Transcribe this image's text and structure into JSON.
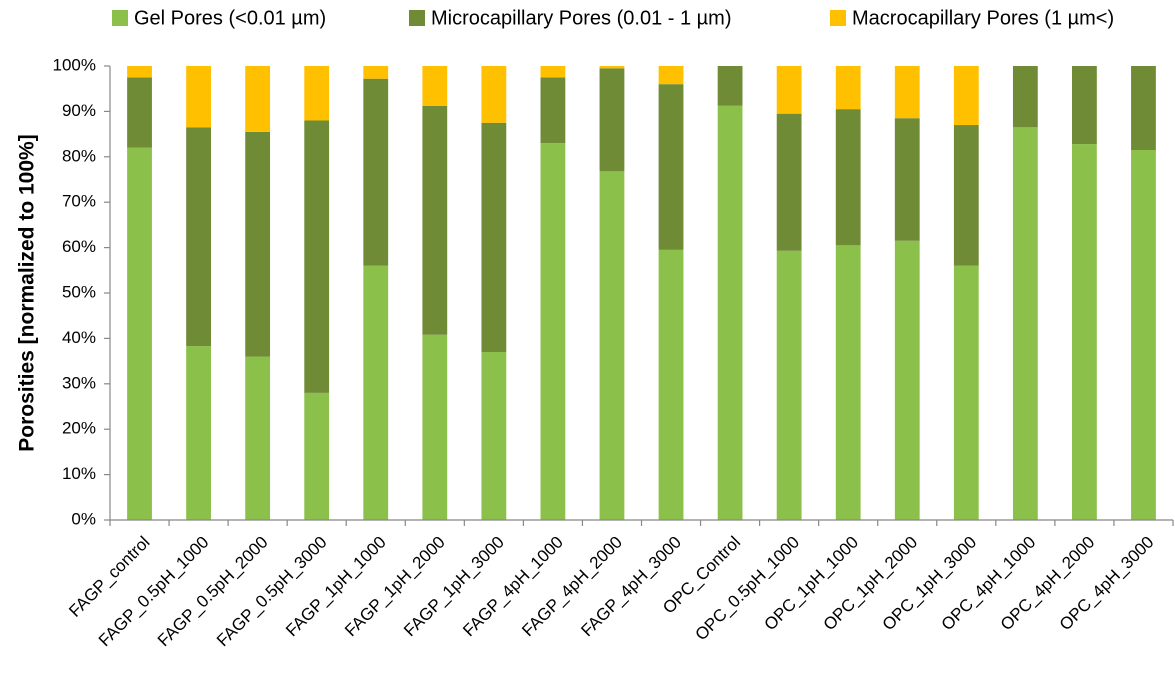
{
  "chart_data": {
    "type": "stacked_bar",
    "ylabel": "Porosities [normalized to 100%]",
    "categories": [
      "FAGP_control",
      "FAGP_0.5pH_1000",
      "FAGP_0.5pH_2000",
      "FAGP_0.5pH_3000",
      "FAGP_1pH_1000",
      "FAGP_1pH_2000",
      "FAGP_1pH_3000",
      "FAGP_4pH_1000",
      "FAGP_4pH_2000",
      "FAGP_4pH_3000",
      "OPC_Control",
      "OPC_0.5pH_1000",
      "OPC_1pH_1000",
      "OPC_1pH_2000",
      "OPC_1pH_3000",
      "OPC_4pH_1000",
      "OPC_4pH_2000",
      "OPC_4pH_3000"
    ],
    "series": [
      {
        "name": "Gel Pores (<0.01 µm)",
        "color": "#8bc04a",
        "values": [
          82,
          38.3,
          36,
          28,
          56,
          40.8,
          37,
          83,
          76.8,
          59.5,
          91.3,
          59.3,
          60.5,
          61.5,
          56,
          86.5,
          82.8,
          81.5
        ]
      },
      {
        "name": "Microcapillary Pores (0.01 - 1 µm)",
        "color": "#6f8b36",
        "values": [
          15.5,
          48.2,
          49.5,
          60,
          41.2,
          50.4,
          50.5,
          14.5,
          22.7,
          36.5,
          8.7,
          30.2,
          30,
          27,
          31,
          13.5,
          17.2,
          18.5
        ]
      },
      {
        "name": "Macrocapillary Pores (1 µm<)",
        "color": "#ffc000",
        "values": [
          2.5,
          13.5,
          14.5,
          12,
          2.8,
          8.8,
          12.5,
          2.5,
          0.5,
          4,
          0,
          10.5,
          9.5,
          11.5,
          13,
          0,
          0,
          0
        ]
      }
    ],
    "ylim": [
      0,
      100
    ],
    "yticks": [
      {
        "value": 0,
        "label": "0%"
      },
      {
        "value": 10,
        "label": "10%"
      },
      {
        "value": 20,
        "label": "20%"
      },
      {
        "value": 30,
        "label": "30%"
      },
      {
        "value": 40,
        "label": "40%"
      },
      {
        "value": 50,
        "label": "50%"
      },
      {
        "value": 60,
        "label": "60%"
      },
      {
        "value": 70,
        "label": "70%"
      },
      {
        "value": 80,
        "label": "80%"
      },
      {
        "value": 90,
        "label": "90%"
      },
      {
        "value": 100,
        "label": "100%"
      }
    ],
    "legend": "top",
    "grid": false
  }
}
